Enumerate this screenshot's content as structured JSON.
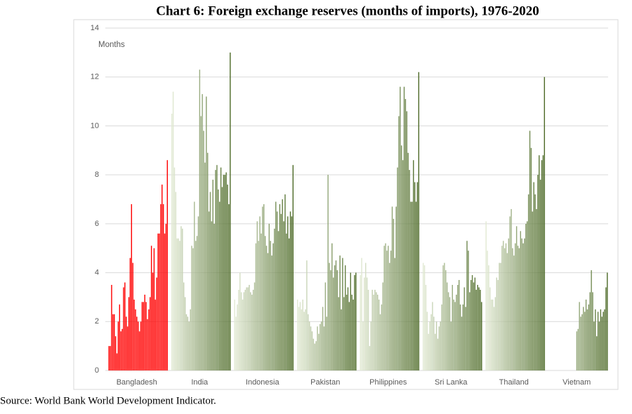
{
  "chart_data": {
    "type": "bar",
    "title": "Chart 6: Foreign exchange reserves (months of imports), 1976-2020",
    "y_label": "Months",
    "source": "Source: World Bank World Development Indicator.",
    "ylim": [
      0,
      14
    ],
    "yticks": [
      0,
      2,
      4,
      6,
      8,
      10,
      12,
      14
    ],
    "grid": true,
    "groups": [
      {
        "name": "Bangladesh",
        "colors": [
          "#ff0000",
          "#ff0000"
        ],
        "values": [
          1.0,
          1.0,
          3.5,
          2.3,
          2.3,
          1.4,
          0.7,
          2.0,
          2.7,
          1.6,
          1.7,
          3.4,
          3.6,
          2.2,
          1.8,
          3.0,
          4.6,
          6.8,
          4.4,
          2.9,
          2.5,
          2.2,
          2.0,
          1.6,
          2.0,
          2.8,
          2.8,
          3.1,
          2.8,
          2.1,
          2.5,
          3.0,
          5.1,
          4.0,
          5.0,
          2.9,
          3.8,
          5.6,
          5.6,
          6.8,
          7.6,
          6.8,
          5.6,
          6.0,
          8.6
        ]
      },
      {
        "name": "India",
        "colors": [
          "#e2ead4",
          "#4e6b28"
        ],
        "values": [
          10.5,
          11.4,
          8.3,
          7.3,
          5.4,
          5.4,
          5.3,
          5.9,
          5.8,
          3.6,
          3.0,
          2.3,
          2.2,
          2.0,
          2.5,
          5.1,
          5.0,
          6.9,
          5.3,
          5.5,
          6.3,
          12.3,
          10.4,
          11.3,
          9.8,
          8.5,
          11.2,
          8.9,
          6.5,
          7.3,
          6.1,
          7.8,
          6.0,
          8.2,
          8.4,
          7.4,
          6.9,
          8.3,
          7.5,
          8.0,
          8.0,
          8.1,
          7.6,
          6.8,
          13.0
        ]
      },
      {
        "name": "Indonesia",
        "colors": [
          "#e2ead4",
          "#4e6b28"
        ],
        "values": [
          2.9,
          2.2,
          2.7,
          3.3,
          4.0,
          3.2,
          2.9,
          3.2,
          3.3,
          3.4,
          3.4,
          3.5,
          3.2,
          3.1,
          3.3,
          3.6,
          5.2,
          6.1,
          5.3,
          6.3,
          5.6,
          6.7,
          6.8,
          5.5,
          5.1,
          4.8,
          6.0,
          5.3,
          4.7,
          5.2,
          5.8,
          6.9,
          6.5,
          5.7,
          6.8,
          6.4,
          7.0,
          6.1,
          7.2,
          5.6,
          6.3,
          5.4,
          6.5,
          6.3,
          8.4
        ]
      },
      {
        "name": "Pakistan",
        "colors": [
          "#e2ead4",
          "#4e6b28"
        ],
        "values": [
          2.9,
          2.6,
          2.8,
          2.5,
          2.9,
          2.4,
          2.5,
          4.5,
          2.3,
          2.0,
          1.8,
          1.6,
          1.3,
          1.1,
          1.2,
          1.8,
          1.5,
          1.9,
          2.0,
          2.6,
          1.8,
          3.6,
          2.2,
          8.0,
          4.4,
          4.1,
          5.2,
          3.8,
          4.3,
          4.5,
          4.1,
          3.0,
          4.7,
          2.5,
          4.6,
          3.0,
          4.3,
          3.1,
          3.4,
          2.8,
          4.0,
          3.1,
          2.9,
          3.9,
          4.0
        ]
      },
      {
        "name": "Philippines",
        "colors": [
          "#e2ead4",
          "#4e6b28"
        ],
        "values": [
          3.9,
          4.6,
          2.0,
          3.8,
          4.4,
          3.8,
          3.3,
          1.0,
          2.0,
          3.3,
          3.1,
          3.3,
          3.2,
          3.1,
          2.9,
          2.3,
          2.7,
          3.6,
          5.1,
          5.2,
          4.9,
          5.1,
          4.4,
          4.9,
          6.7,
          6.2,
          4.6,
          6.7,
          8.3,
          10.4,
          11.6,
          9.2,
          8.6,
          11.6,
          11.1,
          10.6,
          8.9,
          8.2,
          6.9,
          6.9,
          8.6,
          7.7,
          6.9,
          7.7,
          12.2
        ]
      },
      {
        "name": "Sri Lanka",
        "colors": [
          "#e2ead4",
          "#4e6b28"
        ],
        "values": [
          4.4,
          4.3,
          3.5,
          2.4,
          1.5,
          2.0,
          2.3,
          2.8,
          2.2,
          1.5,
          2.0,
          1.3,
          1.8,
          2.0,
          2.7,
          4.3,
          4.4,
          4.1,
          3.6,
          3.2,
          3.0,
          2.0,
          3.5,
          2.9,
          2.8,
          3.1,
          3.5,
          3.7,
          2.7,
          2.2,
          2.7,
          3.4,
          2.6,
          5.3,
          4.9,
          3.2,
          3.7,
          3.9,
          3.6,
          3.8,
          3.3,
          3.5,
          3.4,
          3.3,
          2.8
        ]
      },
      {
        "name": "Thailand",
        "colors": [
          "#e2ead4",
          "#4e6b28"
        ],
        "values": [
          6.1,
          4.9,
          4.3,
          3.4,
          2.9,
          2.9,
          2.6,
          3.0,
          3.8,
          3.7,
          4.4,
          4.4,
          5.1,
          5.3,
          5.0,
          5.2,
          4.8,
          5.4,
          6.3,
          6.6,
          5.0,
          4.7,
          5.2,
          5.9,
          5.1,
          5.0,
          5.7,
          5.4,
          5.2,
          5.4,
          6.0,
          6.1,
          7.2,
          9.8,
          9.1,
          6.5,
          7.7,
          7.2,
          6.6,
          8.0,
          8.8,
          7.8,
          8.6,
          8.8,
          12.0
        ]
      },
      {
        "name": "Vietnam",
        "colors": [
          "#e2ead4",
          "#4e6b28"
        ],
        "values": [
          null,
          null,
          null,
          null,
          null,
          null,
          null,
          null,
          null,
          null,
          null,
          null,
          null,
          null,
          null,
          null,
          null,
          null,
          null,
          null,
          null,
          1.6,
          1.7,
          2.8,
          2.2,
          2.3,
          2.6,
          2.4,
          2.9,
          2.5,
          2.7,
          3.2,
          4.1,
          3.2,
          2.0,
          2.5,
          1.4,
          2.4,
          2.0,
          2.5,
          2.2,
          2.4,
          2.5,
          3.4,
          4.0
        ]
      }
    ]
  }
}
